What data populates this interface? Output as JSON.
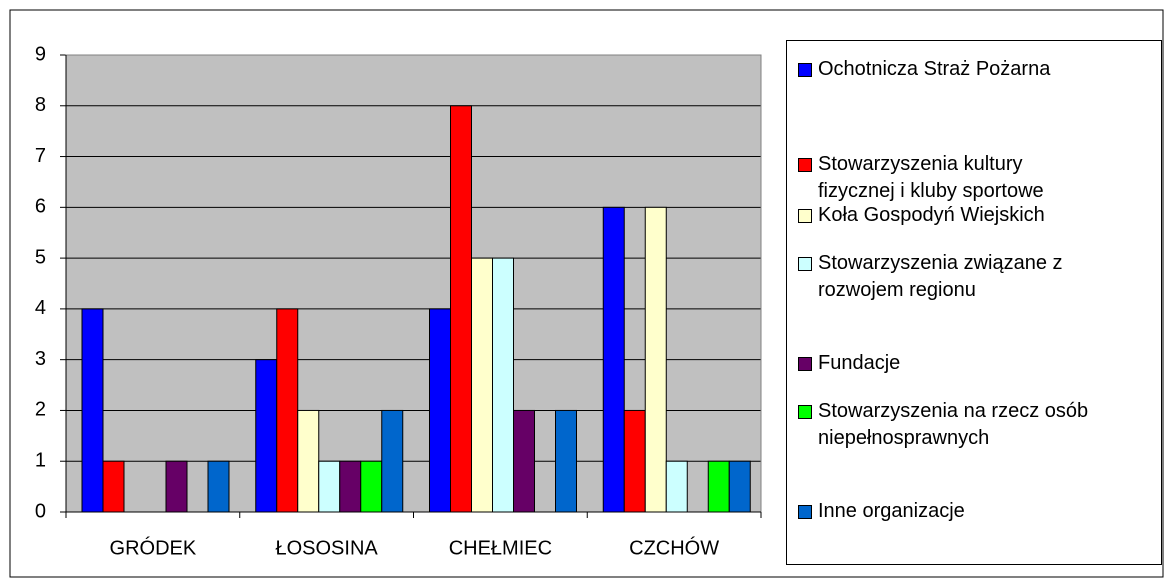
{
  "chart_data": {
    "type": "bar",
    "categories": [
      "GRÓDEK",
      "ŁOSOSINA",
      "CHEŁMIEC",
      "CZCHÓW"
    ],
    "series": [
      {
        "name": "Ochotnicza Straż Pożarna",
        "color": "#0000ff",
        "values": [
          4,
          3,
          4,
          6
        ]
      },
      {
        "name": "Stowarzyszenia kultury\nfizycznej i kluby sportowe",
        "color": "#ff0000",
        "values": [
          1,
          4,
          8,
          2
        ]
      },
      {
        "name": "Koła Gospodyń Wiejskich",
        "color": "#ffffcc",
        "values": [
          0,
          2,
          5,
          6
        ]
      },
      {
        "name": "Stowarzyszenia związane z\nrozwojem regionu",
        "color": "#ccffff",
        "values": [
          0,
          1,
          5,
          1
        ]
      },
      {
        "name": "Fundacje",
        "color": "#660066",
        "values": [
          1,
          1,
          2,
          0
        ]
      },
      {
        "name": "Stowarzyszenia na rzecz osób\nniepełnosprawnych",
        "color": "#00ff00",
        "values": [
          0,
          1,
          0,
          1
        ]
      },
      {
        "name": "Inne organizacje",
        "color": "#0066cc",
        "values": [
          1,
          2,
          2,
          1
        ]
      }
    ],
    "ylim": [
      0,
      9
    ],
    "yticks": [
      0,
      1,
      2,
      3,
      4,
      5,
      6,
      7,
      8,
      9
    ],
    "grid": true,
    "legend": "right"
  }
}
